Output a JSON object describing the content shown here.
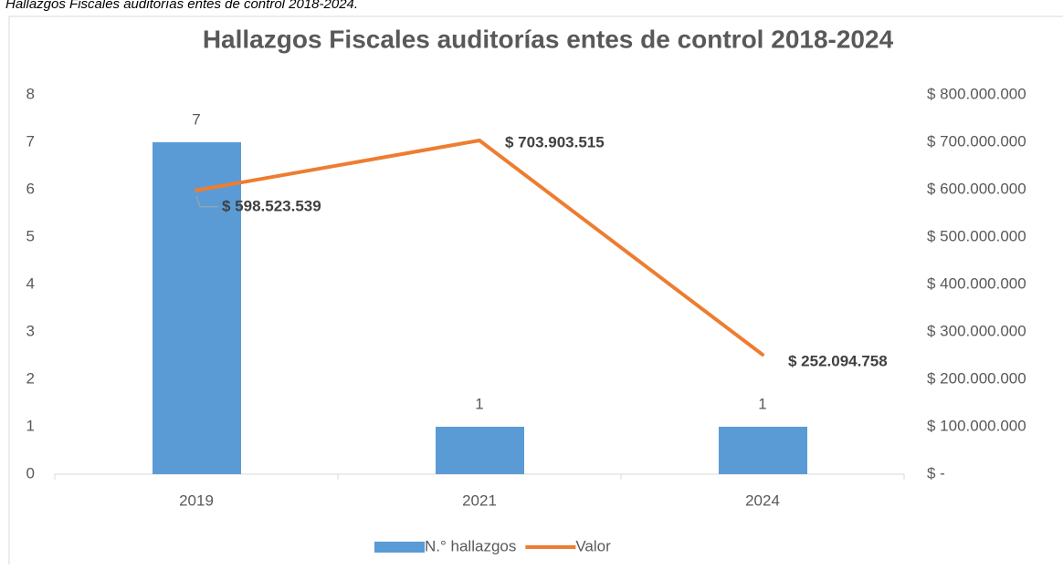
{
  "caption": "Hallazgos Fiscales auditorías entes de control 2018-2024.",
  "chart_data": {
    "type": "bar-line",
    "title": "Hallazgos Fiscales auditorías entes de control 2018-2024",
    "categories": [
      "2019",
      "2021",
      "2024"
    ],
    "series": [
      {
        "name": "N.° hallazgos",
        "type": "bar",
        "color": "#5b9bd5",
        "values": [
          7,
          1,
          1
        ]
      },
      {
        "name": "Valor",
        "type": "line",
        "axis": "y2",
        "color": "#ed7d31",
        "values": [
          598523539,
          703903515,
          252094758
        ],
        "value_labels": [
          "$ 598.523.539",
          "$ 703.903.515",
          "$ 252.094.758"
        ]
      }
    ],
    "ylim": [
      0,
      8
    ],
    "yticks": [
      0,
      1,
      2,
      3,
      4,
      5,
      6,
      7,
      8
    ],
    "y2lim": [
      0,
      800000000
    ],
    "y2ticks": [
      {
        "value": 0,
        "label": "$ -"
      },
      {
        "value": 100000000,
        "label": "$ 100.000.000"
      },
      {
        "value": 200000000,
        "label": "$ 200.000.000"
      },
      {
        "value": 300000000,
        "label": "$ 300.000.000"
      },
      {
        "value": 400000000,
        "label": "$ 400.000.000"
      },
      {
        "value": 500000000,
        "label": "$ 500.000.000"
      },
      {
        "value": 600000000,
        "label": "$ 600.000.000"
      },
      {
        "value": 700000000,
        "label": "$ 700.000.000"
      },
      {
        "value": 800000000,
        "label": "$ 800.000.000"
      }
    ],
    "grid": false,
    "legend": "bottom"
  }
}
